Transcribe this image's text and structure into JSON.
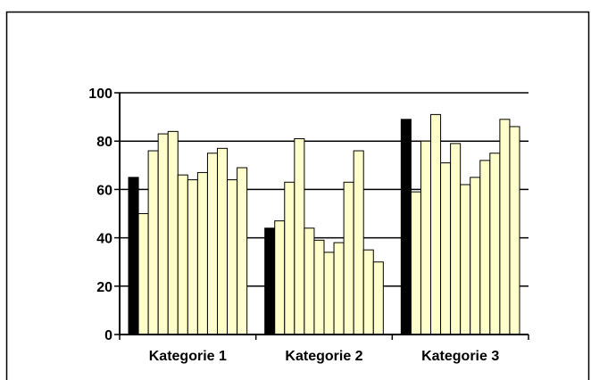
{
  "chart_data": {
    "type": "bar",
    "title": "",
    "xlabel": "",
    "ylabel": "",
    "ylim": [
      0,
      100
    ],
    "yticks": [
      0,
      20,
      40,
      60,
      80,
      100
    ],
    "grid": true,
    "legend": "none",
    "categories": [
      "Kategorie 1",
      "Kategorie 2",
      "Kategorie 3"
    ],
    "highlight_color": "#000000",
    "bar_color": "#ffffcc",
    "series": [
      {
        "values": [
          65,
          44,
          89
        ],
        "highlight": true
      },
      {
        "values": [
          50,
          47,
          59
        ]
      },
      {
        "values": [
          76,
          63,
          80
        ]
      },
      {
        "values": [
          83,
          81,
          91
        ]
      },
      {
        "values": [
          84,
          44,
          71
        ]
      },
      {
        "values": [
          66,
          39,
          79
        ]
      },
      {
        "values": [
          64,
          34,
          62
        ]
      },
      {
        "values": [
          67,
          38,
          65
        ]
      },
      {
        "values": [
          75,
          63,
          72
        ]
      },
      {
        "values": [
          77,
          76,
          75
        ]
      },
      {
        "values": [
          64,
          35,
          89
        ]
      },
      {
        "values": [
          69,
          30,
          86
        ]
      }
    ]
  }
}
